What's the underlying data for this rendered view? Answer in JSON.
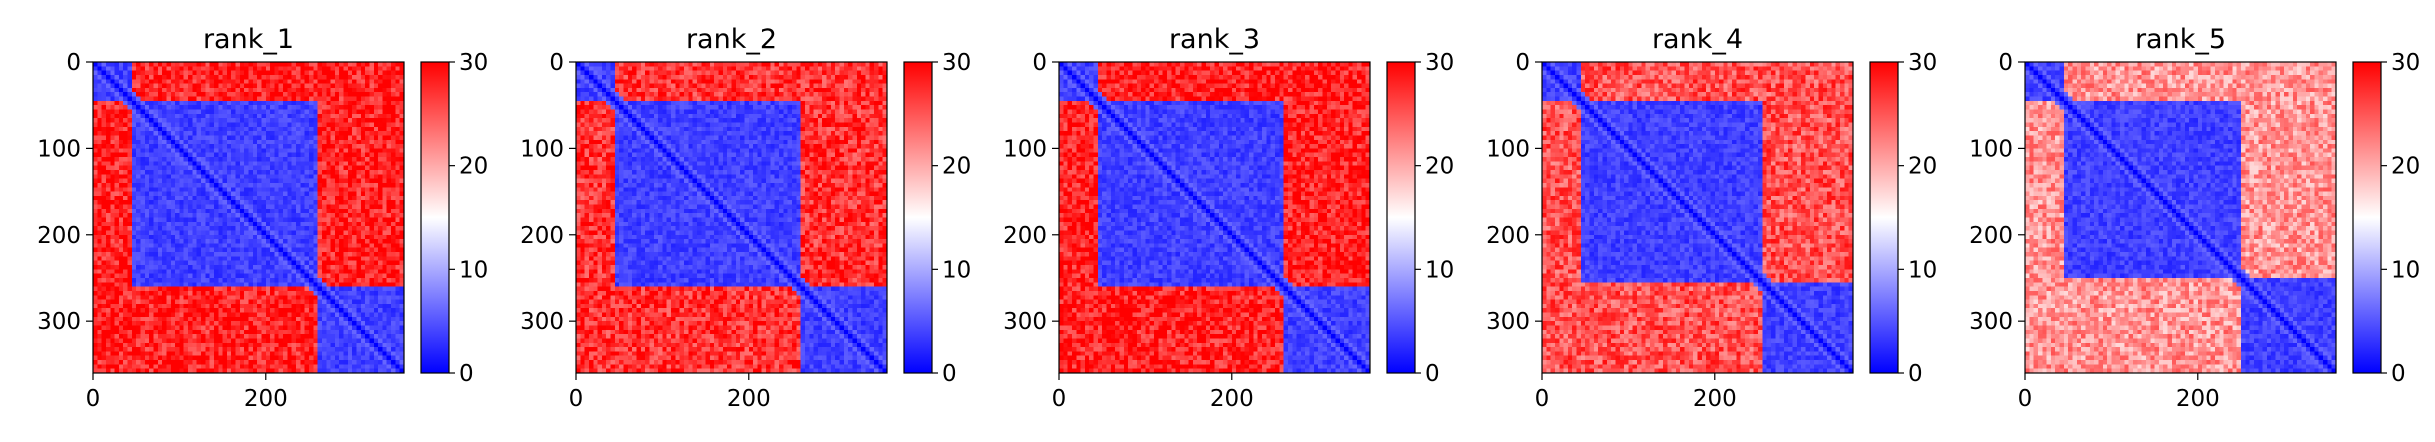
{
  "figure": {
    "layout": "1 row x 5 panels",
    "panel_titles": [
      "rank_1",
      "rank_2",
      "rank_3",
      "rank_4",
      "rank_5"
    ]
  },
  "colors": {
    "low": "#0000ff",
    "mid": "#ffffff",
    "high": "#ff0000"
  },
  "chart_data": [
    {
      "type": "heatmap",
      "title": "rank_1",
      "xlabel": "",
      "ylabel": "",
      "xlim": [
        0,
        360
      ],
      "ylim": [
        360,
        0
      ],
      "x_ticks": [
        0,
        200
      ],
      "y_ticks": [
        0,
        100,
        200,
        300
      ],
      "colorbar": {
        "min": 0,
        "max": 30,
        "ticks": [
          0,
          10,
          20,
          30
        ],
        "colormap": "bwr"
      },
      "grid": false,
      "domains": [
        [
          0,
          45
        ],
        [
          45,
          260
        ],
        [
          260,
          360
        ]
      ],
      "off_domain_value": 27,
      "in_domain_value": 2,
      "notes_visible": "diagonal blocks low distance, off-diagonal high"
    },
    {
      "type": "heatmap",
      "title": "rank_2",
      "xlabel": "",
      "ylabel": "",
      "xlim": [
        0,
        360
      ],
      "ylim": [
        360,
        0
      ],
      "x_ticks": [
        0,
        200
      ],
      "y_ticks": [
        0,
        100,
        200,
        300
      ],
      "colorbar": {
        "min": 0,
        "max": 30,
        "ticks": [
          0,
          10,
          20,
          30
        ],
        "colormap": "bwr"
      },
      "grid": false,
      "domains": [
        [
          0,
          45
        ],
        [
          45,
          258
        ],
        [
          258,
          360
        ]
      ],
      "off_domain_value": 26,
      "in_domain_value": 2
    },
    {
      "type": "heatmap",
      "title": "rank_3",
      "xlabel": "",
      "ylabel": "",
      "xlim": [
        0,
        360
      ],
      "ylim": [
        360,
        0
      ],
      "x_ticks": [
        0,
        200
      ],
      "y_ticks": [
        0,
        100,
        200,
        300
      ],
      "colorbar": {
        "min": 0,
        "max": 30,
        "ticks": [
          0,
          10,
          20,
          30
        ],
        "colormap": "bwr"
      },
      "grid": false,
      "domains": [
        [
          0,
          45
        ],
        [
          45,
          258
        ],
        [
          258,
          360
        ]
      ],
      "off_domain_value": 27,
      "in_domain_value": 2
    },
    {
      "type": "heatmap",
      "title": "rank_4",
      "xlabel": "",
      "ylabel": "",
      "xlim": [
        0,
        360
      ],
      "ylim": [
        360,
        0
      ],
      "x_ticks": [
        0,
        200
      ],
      "y_ticks": [
        0,
        100,
        200,
        300
      ],
      "colorbar": {
        "min": 0,
        "max": 30,
        "ticks": [
          0,
          10,
          20,
          30
        ],
        "colormap": "bwr"
      },
      "grid": false,
      "domains": [
        [
          0,
          45
        ],
        [
          45,
          255
        ],
        [
          255,
          360
        ]
      ],
      "off_domain_value": 24,
      "in_domain_value": 2
    },
    {
      "type": "heatmap",
      "title": "rank_5",
      "xlabel": "",
      "ylabel": "",
      "xlim": [
        0,
        360
      ],
      "ylim": [
        360,
        0
      ],
      "x_ticks": [
        0,
        200
      ],
      "y_ticks": [
        0,
        100,
        200,
        300
      ],
      "colorbar": {
        "min": 0,
        "max": 30,
        "ticks": [
          0,
          10,
          20,
          30
        ],
        "colormap": "bwr"
      },
      "grid": false,
      "domains": [
        [
          0,
          45
        ],
        [
          45,
          250
        ],
        [
          250,
          360
        ]
      ],
      "off_domain_value": 20,
      "in_domain_value": 2
    }
  ]
}
